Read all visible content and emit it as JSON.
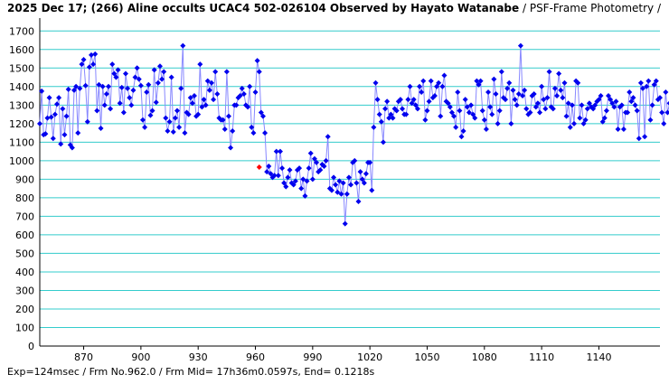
{
  "title_main": "2025 Dec 17; (266) Aline occults UCAC4 502-026104 Observed by Hayato Watanabe",
  "title_sub": "/ PSF-Frame Photometry /",
  "footer": "Exp=124msec / Frm No.962.0 / Frm Mid= 17h36m0.0597s,  End= 0.1218s",
  "colors": {
    "grid": "#33cccc",
    "line": "#8888ff",
    "marker": "#0000ee",
    "highlight": "#ff0000"
  },
  "chart_data": {
    "type": "line",
    "xlim": [
      847,
      1172
    ],
    "ylim": [
      0,
      1750
    ],
    "xticks": [
      870,
      900,
      930,
      960,
      990,
      1020,
      1050,
      1080,
      1110,
      1140
    ],
    "yticks": [
      0,
      100,
      200,
      300,
      400,
      500,
      600,
      700,
      800,
      900,
      1000,
      1100,
      1200,
      1300,
      1400,
      1500,
      1600,
      1700
    ],
    "highlight_point": [
      962,
      965
    ],
    "series": [
      {
        "x_start": 847,
        "x_step": 1,
        "values": [
          1200,
          1375,
          1140,
          1145,
          1230,
          1340,
          1235,
          1120,
          1250,
          1305,
          1340,
          1090,
          1280,
          1140,
          1240,
          1385,
          1085,
          1070,
          1380,
          1400,
          1150,
          1390,
          1520,
          1545,
          1405,
          1210,
          1505,
          1570,
          1520,
          1575,
          1270,
          1410,
          1175,
          1400,
          1300,
          1360,
          1400,
          1280,
          1520,
          1470,
          1450,
          1490,
          1310,
          1395,
          1260,
          1470,
          1390,
          1340,
          1300,
          1380,
          1450,
          1500,
          1440,
          1405,
          1220,
          1180,
          1370,
          1410,
          1245,
          1270,
          1490,
          1315,
          1420,
          1510,
          1440,
          1480,
          1230,
          1160,
          1210,
          1450,
          1155,
          1230,
          1270,
          1180,
          1390,
          1620,
          1150,
          1260,
          1250,
          1340,
          1310,
          1350,
          1240,
          1250,
          1520,
          1290,
          1330,
          1300,
          1430,
          1380,
          1420,
          1330,
          1480,
          1360,
          1230,
          1220,
          1220,
          1170,
          1480,
          1240,
          1070,
          1160,
          1300,
          1300,
          1340,
          1350,
          1390,
          1360,
          1300,
          1290,
          1400,
          1180,
          1150,
          1370,
          1540,
          1480,
          1260,
          1240,
          1150,
          940,
          970,
          930,
          910,
          920,
          1050,
          920,
          1050,
          960,
          880,
          860,
          910,
          950,
          880,
          870,
          890,
          950,
          960,
          850,
          900,
          810,
          890,
          960,
          1040,
          900,
          1010,
          990,
          940,
          950,
          980,
          970,
          1000,
          1130,
          850,
          840,
          910,
          870,
          830,
          890,
          820,
          880,
          660,
          820,
          910,
          870,
          990,
          1000,
          880,
          780,
          940,
          900,
          880,
          930,
          990,
          990,
          840,
          1180,
          1420,
          1330,
          1250,
          1210,
          1100,
          1280,
          1320,
          1230,
          1250,
          1230,
          1280,
          1270,
          1320,
          1330,
          1280,
          1250,
          1250,
          1330,
          1400,
          1310,
          1330,
          1300,
          1280,
          1400,
          1370,
          1430,
          1220,
          1270,
          1320,
          1430,
          1340,
          1350,
          1400,
          1420,
          1240,
          1400,
          1460,
          1320,
          1310,
          1290,
          1260,
          1240,
          1180,
          1370,
          1270,
          1130,
          1160,
          1330,
          1290,
          1260,
          1300,
          1250,
          1230,
          1430,
          1410,
          1430,
          1270,
          1220,
          1170,
          1370,
          1290,
          1250,
          1440,
          1360,
          1200,
          1270,
          1480,
          1340,
          1330,
          1390,
          1420,
          1200,
          1380,
          1330,
          1300,
          1360,
          1620,
          1350,
          1380,
          1280,
          1250,
          1260,
          1350,
          1360,
          1290,
          1310,
          1260,
          1400,
          1330,
          1280,
          1340,
          1480,
          1290,
          1280,
          1390,
          1350,
          1470,
          1380,
          1340,
          1420,
          1240,
          1310,
          1180,
          1300,
          1200,
          1430,
          1420,
          1230,
          1300,
          1200,
          1220,
          1280,
          1310,
          1290,
          1280,
          1300,
          1320,
          1330,
          1350,
          1210,
          1230,
          1270,
          1350,
          1330,
          1310,
          1290,
          1320,
          1170,
          1290,
          1300,
          1170,
          1260,
          1260,
          1370,
          1320,
          1340,
          1300,
          1270,
          1120,
          1420,
          1390,
          1130,
          1400,
          1430,
          1220,
          1300,
          1410,
          1430,
          1330,
          1340,
          1260,
          1200,
          1370,
          1260,
          1310,
          1280,
          1380,
          1350,
          1300,
          1270,
          1380,
          1410,
          1270,
          1340,
          1220,
          1330,
          1300,
          1140,
          1270,
          1300,
          1360,
          1300,
          1440,
          1420,
          1280,
          1260,
          1240,
          1100,
          1260,
          1280,
          1200,
          1330,
          1310,
          1320,
          1300,
          1320,
          1340,
          1080,
          1230,
          1280,
          1270
        ]
      }
    ]
  }
}
